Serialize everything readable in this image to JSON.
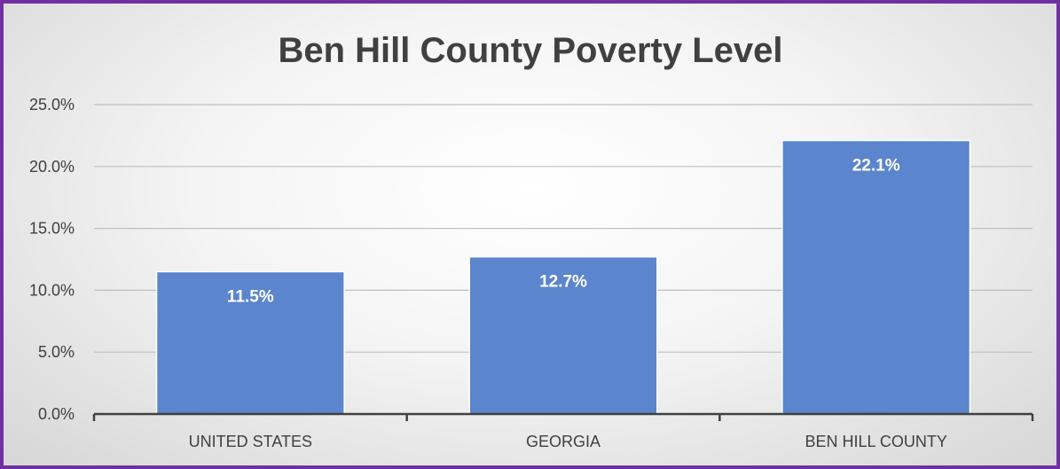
{
  "chart_data": {
    "type": "bar",
    "title": "Ben Hill County Poverty Level",
    "xlabel": "",
    "ylabel": "",
    "categories": [
      "UNITED STATES",
      "GEORGIA",
      "BEN HILL COUNTY"
    ],
    "values": [
      11.5,
      12.7,
      22.1
    ],
    "data_labels": [
      "11.5%",
      "12.7%",
      "22.1%"
    ],
    "ylim": [
      0,
      25
    ],
    "yticks": [
      0,
      5,
      10,
      15,
      20,
      25
    ],
    "ytick_labels": [
      "0.0%",
      "5.0%",
      "10.0%",
      "15.0%",
      "20.0%",
      "25.0%"
    ],
    "grid": true,
    "legend": "none",
    "colors": {
      "bar": "#5b85cc",
      "bar_border": "#ffffff",
      "frame_border": "#7030a0",
      "grid": "#bfbfbf",
      "axis": "#404040",
      "text": "#404040"
    }
  }
}
